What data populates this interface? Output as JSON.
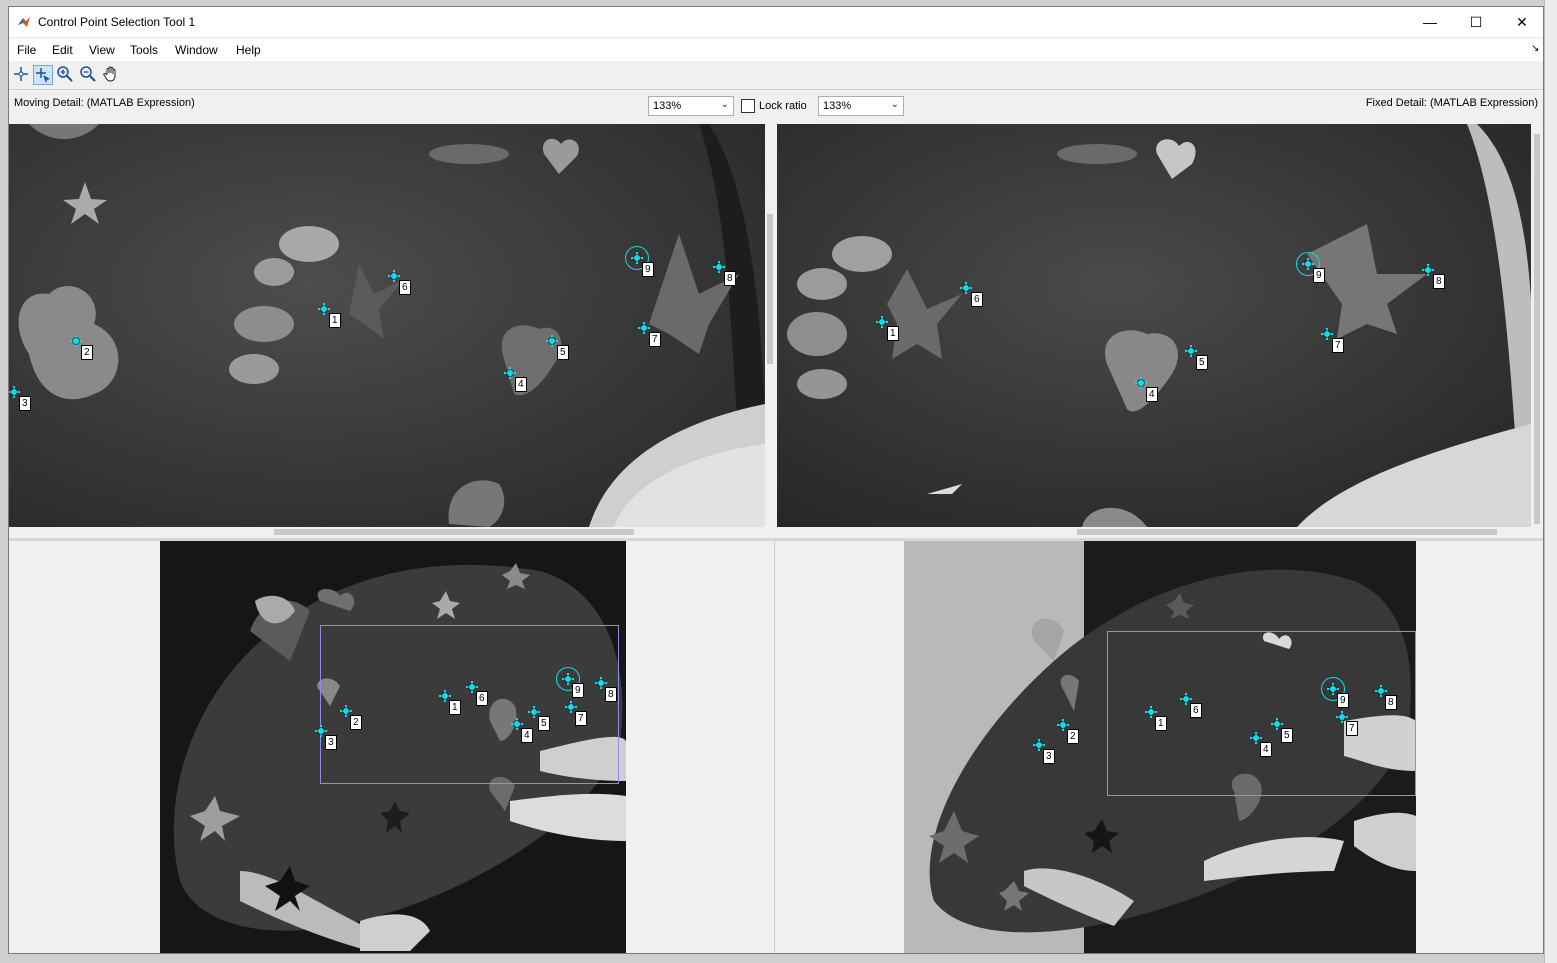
{
  "window": {
    "title": "Control Point Selection Tool 1",
    "minimize_glyph": "—",
    "maximize_glyph": "☐",
    "close_glyph": "✕"
  },
  "menu": [
    "File",
    "Edit",
    "View",
    "Tools",
    "Window",
    "Help"
  ],
  "menu_arrow_glyph": "↘",
  "toolbar": {
    "tools": [
      "add-point-icon",
      "select-point-icon",
      "zoom-in-icon",
      "zoom-out-icon",
      "pan-hand-icon"
    ],
    "active_tool": "select-point-icon"
  },
  "detail_bar": {
    "moving_label": "Moving Detail: (MATLAB Expression)",
    "fixed_label": "Fixed Detail: (MATLAB Expression)",
    "moving_zoom": "133%",
    "fixed_zoom": "133%",
    "lock_ratio_label": "Lock ratio",
    "lock_ratio_checked": false
  },
  "colors": {
    "point": "#16d8e8",
    "roi": "#8e8ce8",
    "rock": "#3a3a3a"
  },
  "control_points": {
    "labels": [
      "1",
      "2",
      "3",
      "4",
      "5",
      "6",
      "7",
      "8",
      "9"
    ],
    "selected": "9"
  }
}
